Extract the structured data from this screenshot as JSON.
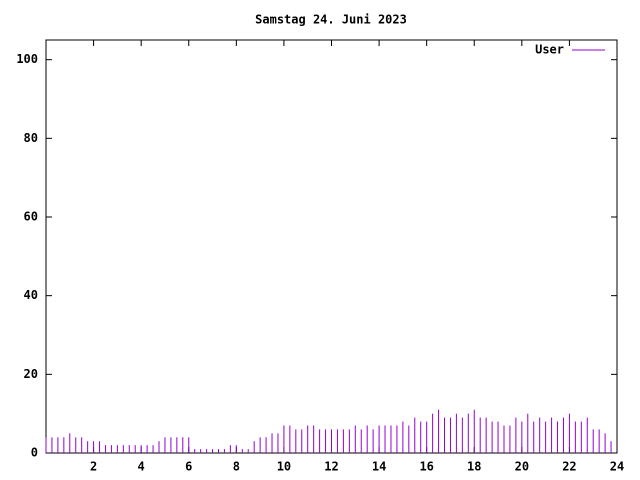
{
  "chart_data": {
    "type": "impulse",
    "title": "Samstag 24. Juni 2023",
    "x": [
      0,
      0.25,
      0.5,
      0.75,
      1,
      1.25,
      1.5,
      1.75,
      2,
      2.25,
      2.5,
      2.75,
      3,
      3.25,
      3.5,
      3.75,
      4,
      4.25,
      4.5,
      4.75,
      5,
      5.25,
      5.5,
      5.75,
      6,
      6.25,
      6.5,
      6.75,
      7,
      7.25,
      7.5,
      7.75,
      8,
      8.25,
      8.5,
      8.75,
      9,
      9.25,
      9.5,
      9.75,
      10,
      10.25,
      10.5,
      10.75,
      11,
      11.25,
      11.5,
      11.75,
      12,
      12.25,
      12.5,
      12.75,
      13,
      13.25,
      13.5,
      13.75,
      14,
      14.25,
      14.5,
      14.75,
      15,
      15.25,
      15.5,
      15.75,
      16,
      16.25,
      16.5,
      16.75,
      17,
      17.25,
      17.5,
      17.75,
      18,
      18.25,
      18.5,
      18.75,
      19,
      19.25,
      19.5,
      19.75,
      20,
      20.25,
      20.5,
      20.75,
      21,
      21.25,
      21.5,
      21.75,
      22,
      22.25,
      22.5,
      22.75,
      23,
      23.25,
      23.5,
      23.75
    ],
    "series": [
      {
        "name": "User",
        "color": "#9400d3",
        "values": [
          4,
          4,
          4,
          4,
          5,
          4,
          4,
          3,
          3,
          3,
          2,
          2,
          2,
          2,
          2,
          2,
          2,
          2,
          2,
          3,
          4,
          4,
          4,
          4,
          4,
          1,
          1,
          1,
          1,
          1,
          1,
          2,
          2,
          1,
          1,
          3,
          4,
          4,
          5,
          5,
          7,
          7,
          6,
          6,
          7,
          7,
          6,
          6,
          6,
          6,
          6,
          6,
          7,
          6,
          7,
          6,
          7,
          7,
          7,
          7,
          8,
          7,
          9,
          8,
          8,
          10,
          11,
          9,
          9,
          10,
          9,
          10,
          11,
          9,
          9,
          8,
          8,
          7,
          7,
          9,
          8,
          10,
          8,
          9,
          8,
          9,
          8,
          9,
          10,
          8,
          8,
          9,
          6,
          6,
          5,
          3
        ]
      }
    ],
    "xlim": [
      0,
      24
    ],
    "xticks": [
      2,
      4,
      6,
      8,
      10,
      12,
      14,
      16,
      18,
      20,
      22,
      24
    ],
    "ylim": [
      0,
      105
    ],
    "yticks": [
      0,
      20,
      40,
      60,
      80,
      100
    ],
    "legend": "top-right"
  }
}
